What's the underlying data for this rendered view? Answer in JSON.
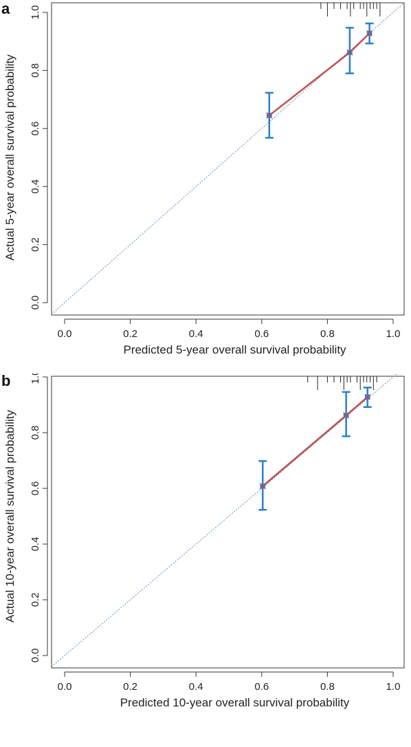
{
  "panels": [
    {
      "label": "a"
    },
    {
      "label": "b"
    }
  ],
  "colors": {
    "calibration_line": "#c0504d",
    "errorbar": "#2a7fc9",
    "ideal_line": "#5b8fc7",
    "axis": "#333333"
  },
  "chart_data": [
    {
      "type": "line",
      "title": "",
      "xlabel": "Predicted 5-year overall survival probability",
      "ylabel": "Actual 5-year overall survival probability",
      "xlim": [
        0,
        1
      ],
      "ylim": [
        0,
        1
      ],
      "xticks": [
        "0.0",
        "0.2",
        "0.4",
        "0.6",
        "0.8",
        "1.0"
      ],
      "yticks": [
        "0.0",
        "0.2",
        "0.4",
        "0.6",
        "0.8",
        "1.0"
      ],
      "grid": false,
      "ideal_line": {
        "x": [
          0,
          1
        ],
        "y": [
          0,
          1
        ],
        "style": "dotted"
      },
      "series": [
        {
          "x": [
            0.623,
            0.868,
            0.928
          ],
          "y": [
            0.645,
            0.862,
            0.928
          ],
          "ci_lower": [
            0.568,
            0.79,
            0.893
          ],
          "ci_upper": [
            0.723,
            0.947,
            0.962
          ],
          "markers": "x"
        }
      ],
      "rug_top": [
        0.78,
        0.8,
        0.82,
        0.84,
        0.86,
        0.87,
        0.88,
        0.9,
        0.91,
        0.92,
        0.93,
        0.94,
        0.95,
        0.96
      ]
    },
    {
      "type": "line",
      "title": "",
      "xlabel": "Predicted 10-year overall survival probability",
      "ylabel": "Actual 10-year overall survival probability",
      "xlim": [
        0,
        1
      ],
      "ylim": [
        0,
        1
      ],
      "xticks": [
        "0.0",
        "0.2",
        "0.4",
        "0.6",
        "0.8",
        "1.0"
      ],
      "yticks": [
        "0.0",
        "0.2",
        "0.4",
        "0.6",
        "0.8",
        "1.0"
      ],
      "grid": false,
      "ideal_line": {
        "x": [
          0,
          1
        ],
        "y": [
          0,
          1
        ],
        "style": "dotted"
      },
      "series": [
        {
          "x": [
            0.603,
            0.857,
            0.922
          ],
          "y": [
            0.608,
            0.862,
            0.928
          ],
          "ci_lower": [
            0.523,
            0.787,
            0.892
          ],
          "ci_upper": [
            0.698,
            0.946,
            0.962
          ],
          "markers": "x"
        }
      ],
      "rug_top": [
        0.74,
        0.77,
        0.8,
        0.82,
        0.84,
        0.85,
        0.86,
        0.87,
        0.89,
        0.9,
        0.91,
        0.92,
        0.93,
        0.94,
        0.95
      ]
    }
  ]
}
